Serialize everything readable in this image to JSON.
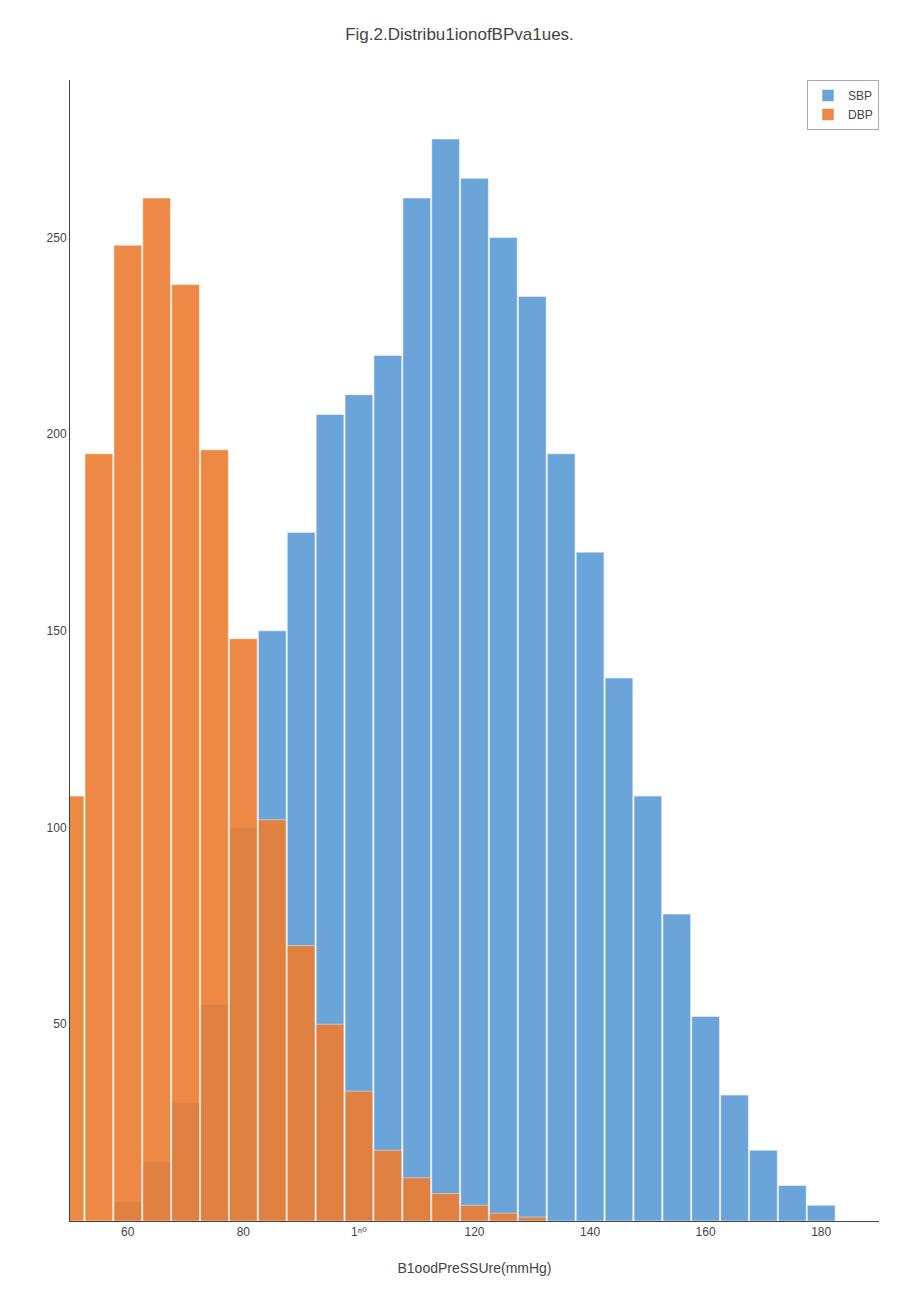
{
  "chart_data": {
    "type": "bar",
    "title": "Fig.2.Distribu1ionofBPva1ues.",
    "x_label": "B1oodPreSSUre(mmHg)",
    "series": [
      {
        "name": "SBP",
        "color": "#5b9bd5",
        "x": [
          60,
          65,
          70,
          75,
          80,
          85,
          90,
          95,
          100,
          105,
          110,
          115,
          120,
          125,
          130,
          135,
          140,
          145,
          150,
          155,
          160,
          165,
          170,
          175,
          180
        ],
        "values": [
          5,
          15,
          30,
          55,
          100,
          150,
          175,
          205,
          210,
          220,
          260,
          275,
          265,
          250,
          235,
          195,
          170,
          138,
          108,
          78,
          52,
          32,
          18,
          9,
          4
        ]
      },
      {
        "name": "DBP",
        "color": "#ed7d31",
        "x": [
          50,
          55,
          60,
          65,
          70,
          75,
          80,
          85,
          90,
          95,
          100,
          105,
          110,
          115,
          120,
          125,
          130
        ],
        "values": [
          108,
          195,
          248,
          260,
          238,
          196,
          148,
          102,
          70,
          50,
          33,
          18,
          11,
          7,
          4,
          2,
          1
        ]
      }
    ],
    "xlim": [
      50,
      190
    ],
    "ylim": [
      0,
      290
    ],
    "xticks": [
      60,
      80,
      {
        "value": 100,
        "label": "1ⁿ⁰"
      },
      120,
      140,
      160,
      180
    ],
    "yticks": [
      50,
      100,
      150,
      200,
      250
    ],
    "legend": "upper right",
    "stacked": false,
    "grid": false
  }
}
